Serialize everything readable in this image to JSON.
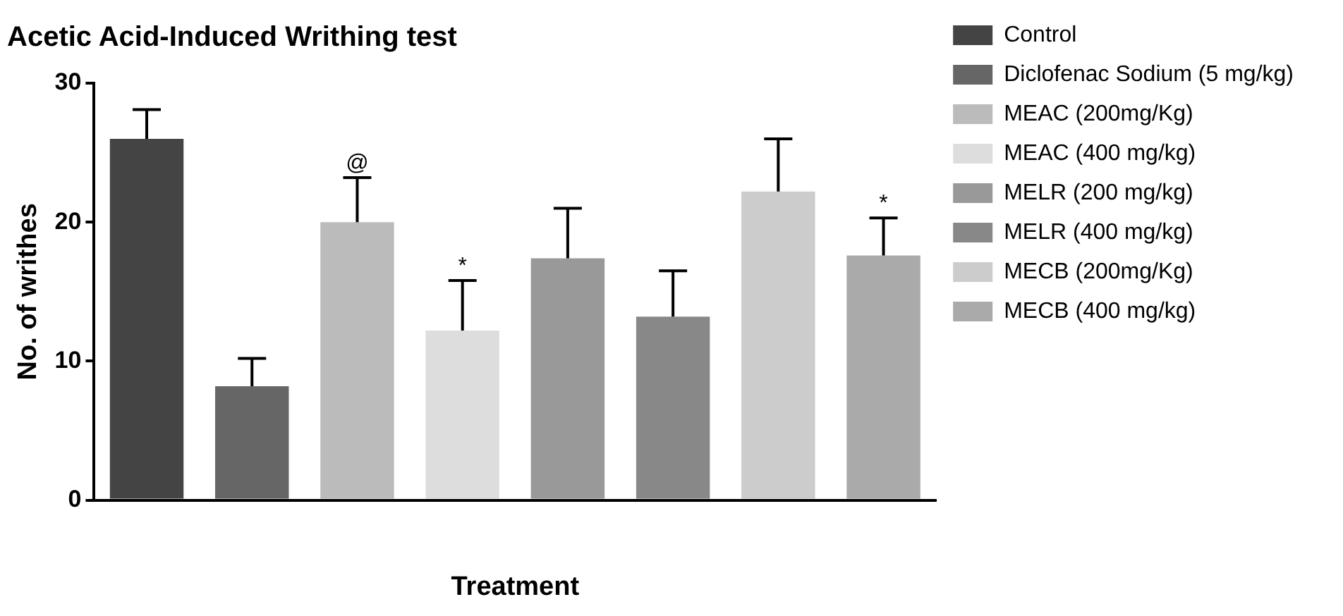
{
  "chart_data": {
    "type": "bar",
    "title": "Acetic Acid-Induced Writhing test",
    "xlabel": "Treatment",
    "ylabel": "No. of writhes",
    "categories": [
      null,
      null,
      null,
      null,
      null,
      null,
      null,
      null
    ],
    "ylim": [
      0,
      30
    ],
    "yticks": [
      0,
      10,
      20,
      30
    ],
    "grid": false,
    "legend": "right",
    "series": [
      {
        "name": "Control",
        "color": "#444444",
        "values": [
          26,
          null,
          null,
          null,
          null,
          null,
          null,
          null
        ],
        "errors": [
          2.1,
          null,
          null,
          null,
          null,
          null,
          null,
          null
        ]
      },
      {
        "name": "Diclofenac Sodium (5 mg/kg)",
        "color": "#666666",
        "values": [
          null,
          8.2,
          null,
          null,
          null,
          null,
          null,
          null
        ],
        "errors": [
          null,
          2,
          null,
          null,
          null,
          null,
          null,
          null
        ]
      },
      {
        "name": "MEAC (200mg/Kg)",
        "color": "#bbbbbb",
        "values": [
          null,
          null,
          20,
          null,
          null,
          null,
          null,
          null
        ],
        "errors": [
          null,
          null,
          3.2,
          null,
          null,
          null,
          null,
          null
        ],
        "value_labels": [
          null,
          null,
          "@",
          null,
          null,
          null,
          null,
          null
        ]
      },
      {
        "name": "MEAC (400 mg/kg)",
        "color": "#dddddd",
        "values": [
          null,
          null,
          null,
          12.2,
          null,
          null,
          null,
          null
        ],
        "errors": [
          null,
          null,
          null,
          3.6,
          null,
          null,
          null,
          null
        ],
        "value_labels": [
          null,
          null,
          null,
          "*",
          null,
          null,
          null,
          null
        ]
      },
      {
        "name": "MELR (200 mg/kg)",
        "color": "#999999",
        "values": [
          null,
          null,
          null,
          null,
          17.4,
          null,
          null,
          null
        ],
        "errors": [
          null,
          null,
          null,
          null,
          3.6,
          null,
          null,
          null
        ]
      },
      {
        "name": "MELR (400 mg/kg)",
        "color": "#888888",
        "values": [
          null,
          null,
          null,
          null,
          null,
          13.2,
          null,
          null
        ],
        "errors": [
          null,
          null,
          null,
          null,
          null,
          3.3,
          null,
          null
        ]
      },
      {
        "name": "MECB (200mg/Kg)",
        "color": "#cccccc",
        "values": [
          null,
          null,
          null,
          null,
          null,
          null,
          22.2,
          null
        ],
        "errors": [
          null,
          null,
          null,
          null,
          null,
          null,
          3.8,
          null
        ]
      },
      {
        "name": "MECB (400 mg/kg)",
        "color": "#aaaaaa",
        "values": [
          null,
          null,
          null,
          null,
          null,
          null,
          null,
          17.6
        ],
        "errors": [
          null,
          null,
          null,
          null,
          null,
          null,
          null,
          2.7
        ],
        "value_labels": [
          null,
          null,
          null,
          null,
          null,
          null,
          null,
          "*"
        ]
      }
    ]
  }
}
